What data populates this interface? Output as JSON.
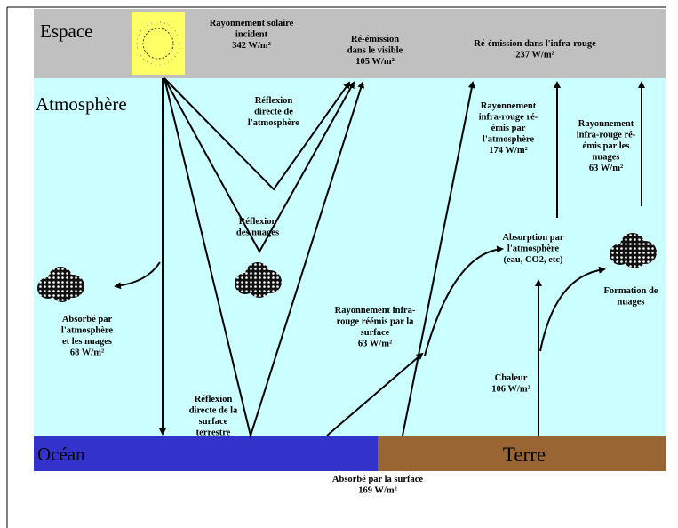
{
  "zones": {
    "space": "Espace",
    "atmosphere": "Atmosphère",
    "ocean": "Océan",
    "land": "Terre"
  },
  "labels": [
    {
      "lines": [
        "Rayonnement solaire",
        "incident",
        "342 W/m²"
      ]
    },
    {
      "lines": [
        "Ré-émission",
        "dans le visible",
        "105 W/m²"
      ]
    },
    {
      "lines": [
        "Ré-émission dans l'infra-rouge",
        "237 W/m²"
      ]
    },
    {
      "lines": [
        "Réflexion",
        "directe de",
        "l'atmosphère"
      ]
    },
    {
      "lines": [
        "Rayonnement",
        "infra-rouge ré-",
        "émis par",
        "l'atmosphère",
        "174 W/m²"
      ]
    },
    {
      "lines": [
        "Rayonnement",
        "infra-rouge ré-",
        "émis par les",
        "nuages",
        "63 W/m²"
      ]
    },
    {
      "lines": [
        "Réflexion",
        "des nuages"
      ]
    },
    {
      "lines": [
        "Absorption par",
        "l'atmosphère",
        "(eau, CO2, etc)"
      ]
    },
    {
      "lines": [
        "Formation de",
        "nuages"
      ]
    },
    {
      "lines": [
        "Absorbé par",
        "l'atmosphère",
        "et les nuages",
        "68 W/m²"
      ]
    },
    {
      "lines": [
        "Rayonnement infra-",
        "rouge réémis par la",
        "surface",
        "63 W/m²"
      ]
    },
    {
      "lines": [
        "Chaleur",
        "106 W/m²"
      ]
    },
    {
      "lines": [
        "Réflexion",
        "directe de la",
        "surface",
        "terrestre"
      ]
    },
    {
      "lines": [
        "Absorbé par la surface",
        "169 W/m²"
      ]
    }
  ]
}
